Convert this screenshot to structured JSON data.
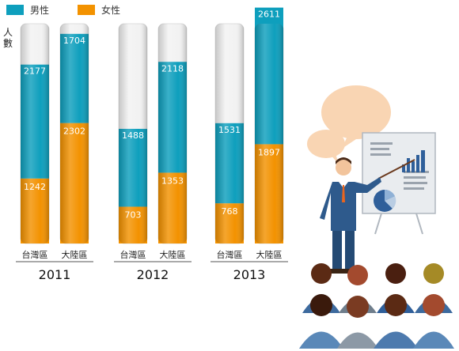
{
  "colors": {
    "male": "#0e9fbd",
    "female": "#f39200",
    "tube": "#f2f2f2"
  },
  "illustration": {
    "icon": "presenter-with-audience-icon"
  },
  "chart_data": {
    "type": "bar",
    "stacked": true,
    "legend_position": "top-left",
    "grid": false,
    "ylabel": "人數",
    "ylim": [
      0,
      4200
    ],
    "groups": [
      "2011",
      "2012",
      "2013"
    ],
    "categories": [
      "台灣區",
      "大陸區"
    ],
    "series": [
      {
        "name": "男性",
        "color": "#0e9fbd",
        "values": [
          [
            2177,
            1704
          ],
          [
            1488,
            2118
          ],
          [
            1531,
            2611
          ]
        ]
      },
      {
        "name": "女性",
        "color": "#f39200",
        "values": [
          [
            1242,
            2302
          ],
          [
            703,
            1353
          ],
          [
            768,
            1897
          ]
        ]
      }
    ]
  }
}
